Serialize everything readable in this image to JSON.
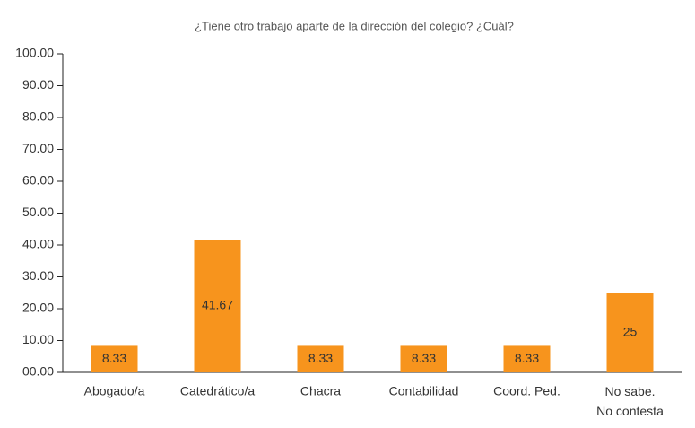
{
  "chart_data": {
    "type": "bar",
    "title": "¿Tiene otro trabajo aparte de la dirección del colegio? ¿Cuál?",
    "categories": [
      "Abogado/a",
      "Catedrático/a",
      "Chacra",
      "Contabilidad",
      "Coord. Ped.",
      "No sabe.\nNo contesta"
    ],
    "values": [
      8.33,
      41.67,
      8.33,
      8.33,
      8.33,
      25
    ],
    "color": "#f7941d",
    "ylim": [
      0,
      100
    ],
    "yticks": [
      {
        "value": 0,
        "label": "00.00"
      },
      {
        "value": 10,
        "label": "10.00"
      },
      {
        "value": 20,
        "label": "20.00"
      },
      {
        "value": 30,
        "label": "30.00"
      },
      {
        "value": 40,
        "label": "40.00"
      },
      {
        "value": 50,
        "label": "50.00"
      },
      {
        "value": 60,
        "label": "60.00"
      },
      {
        "value": 70,
        "label": "70.00"
      },
      {
        "value": 80,
        "label": "80.00"
      },
      {
        "value": 90,
        "label": "90.00"
      },
      {
        "value": 100,
        "label": "100.00"
      }
    ],
    "grid": false
  }
}
